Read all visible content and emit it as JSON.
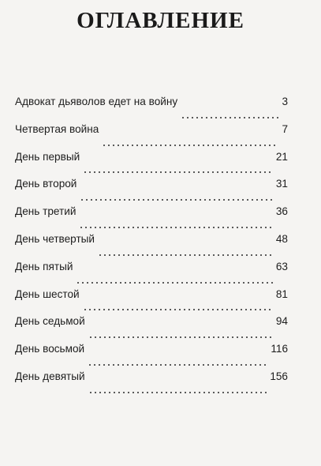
{
  "heading": "ОГЛАВЛЕНИЕ",
  "toc": [
    {
      "title": "Адвокат дьяволов едет на войну",
      "page": "3"
    },
    {
      "title": "Четвертая война",
      "page": "7"
    },
    {
      "title": "День первый",
      "page": "21"
    },
    {
      "title": "День второй",
      "page": "31"
    },
    {
      "title": "День третий",
      "page": "36"
    },
    {
      "title": "День четвертый",
      "page": "48"
    },
    {
      "title": "День пятый",
      "page": "63"
    },
    {
      "title": "День шестой",
      "page": "81"
    },
    {
      "title": "День седьмой",
      "page": "94"
    },
    {
      "title": "День восьмой",
      "page": "116"
    },
    {
      "title": "День девятый",
      "page": "156"
    }
  ]
}
